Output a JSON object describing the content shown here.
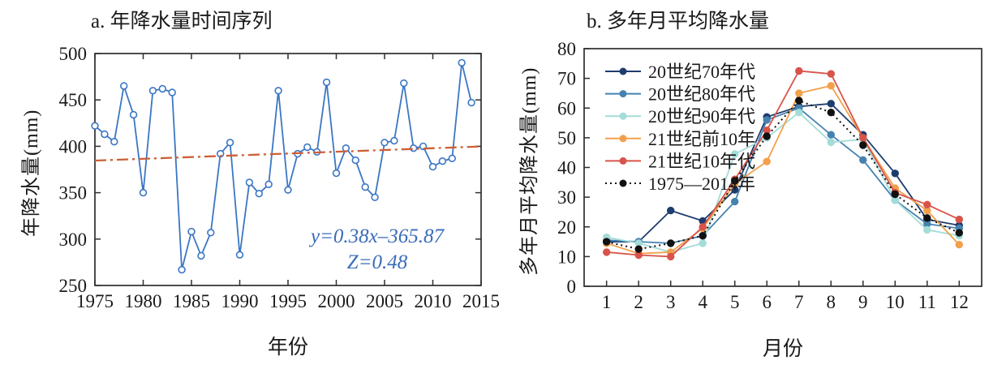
{
  "figure": {
    "background": "#ffffff",
    "axis_color": "#2e2e2e"
  },
  "chart_data": [
    {
      "id": "a",
      "type": "line",
      "title": "a. 年降水量时间序列",
      "xlabel": "年份",
      "ylabel": "年降水量(mm)",
      "xlim": [
        1975,
        2015
      ],
      "ylim": [
        250,
        500
      ],
      "xticks": [
        1975,
        1980,
        1985,
        1990,
        1995,
        2000,
        2005,
        2010,
        2015
      ],
      "yticks": [
        250,
        300,
        350,
        400,
        450,
        500
      ],
      "grid": false,
      "x": [
        1975,
        1976,
        1977,
        1978,
        1979,
        1980,
        1981,
        1982,
        1983,
        1984,
        1985,
        1986,
        1987,
        1988,
        1989,
        1990,
        1991,
        1992,
        1993,
        1994,
        1995,
        1996,
        1997,
        1998,
        1999,
        2000,
        2001,
        2002,
        2003,
        2004,
        2005,
        2006,
        2007,
        2008,
        2009,
        2010,
        2011,
        2012,
        2013,
        2014
      ],
      "series": [
        {
          "id": "annual-precipitation",
          "color": "#3b76c4",
          "style": "solid",
          "marker": "open",
          "values": [
            422,
            413,
            405,
            465,
            434,
            350,
            460,
            462,
            458,
            267,
            308,
            282,
            307,
            392,
            404,
            283,
            361,
            349,
            359,
            460,
            353,
            392,
            399,
            394,
            469,
            371,
            398,
            385,
            356,
            345,
            404,
            406,
            468,
            398,
            400,
            378,
            384,
            387,
            490,
            447
          ]
        },
        {
          "id": "trend-line",
          "color": "#cd5f36",
          "style": "dashdot",
          "trend": {
            "slope": 0.38,
            "intercept": -365.87
          }
        }
      ],
      "annotations": [
        "y=0.38x–365.87",
        "Z=0.48"
      ],
      "annotation_color": "#3a6cb8"
    },
    {
      "id": "b",
      "type": "line",
      "title": "b. 多年月平均降水量",
      "xlabel": "月份",
      "ylabel": "多年月平均降水量(mm)",
      "xlim": [
        0.3,
        12.7
      ],
      "ylim": [
        0,
        80
      ],
      "xticks": [
        1,
        2,
        3,
        4,
        5,
        6,
        7,
        8,
        9,
        10,
        11,
        12
      ],
      "yticks": [
        0,
        10,
        20,
        30,
        40,
        50,
        60,
        70,
        80
      ],
      "grid": false,
      "legend_position": "top-left",
      "x": [
        1,
        2,
        3,
        4,
        5,
        6,
        7,
        8,
        9,
        10,
        11,
        12
      ],
      "series": [
        {
          "id": "decade-1970s",
          "name": "20世纪70年代",
          "color": "#1e3c6e",
          "style": "solid",
          "marker": "filled",
          "values": [
            15,
            15,
            25.5,
            22,
            32.5,
            57,
            60.5,
            61.5,
            51,
            38,
            22.5,
            20.5
          ]
        },
        {
          "id": "decade-1980s",
          "name": "20世纪80年代",
          "color": "#4682b0",
          "style": "solid",
          "marker": "filled",
          "values": [
            15.5,
            15,
            14.5,
            17,
            28.5,
            56,
            60,
            51,
            42.5,
            29,
            21,
            19.5
          ]
        },
        {
          "id": "decade-1990s",
          "name": "20世纪90年代",
          "color": "#a3dcd8",
          "style": "solid",
          "marker": "filled",
          "values": [
            16.5,
            14.5,
            11.5,
            14.5,
            44.5,
            50,
            58.5,
            48.5,
            49.5,
            29,
            19,
            17
          ]
        },
        {
          "id": "decade-2000s",
          "name": "21世纪前10年",
          "color": "#f2a04b",
          "style": "solid",
          "marker": "filled",
          "values": [
            14.5,
            11,
            11.5,
            19.5,
            34.5,
            42,
            65,
            67.5,
            50,
            33,
            25.5,
            14
          ]
        },
        {
          "id": "decade-2010s",
          "name": "21世纪10年代",
          "color": "#d9534a",
          "style": "solid",
          "marker": "filled",
          "values": [
            11.5,
            10.5,
            10,
            20,
            36,
            52.5,
            72.5,
            71.5,
            50,
            31.5,
            27.5,
            22.5
          ]
        },
        {
          "id": "mean-1975-2014",
          "name": "1975—2014年",
          "color": "#111111",
          "style": "dotted",
          "marker": "filled",
          "values": [
            15,
            12.5,
            14.5,
            17,
            35.5,
            50.5,
            62.5,
            58.5,
            47.5,
            31,
            23,
            18
          ]
        }
      ]
    }
  ]
}
